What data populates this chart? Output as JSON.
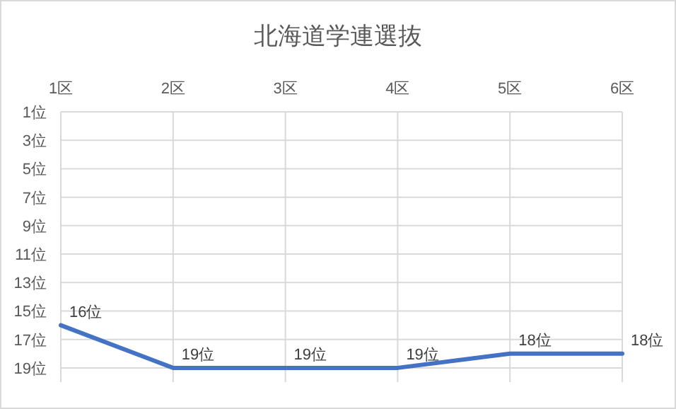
{
  "chart_data": {
    "type": "line",
    "title": "北海道学連選抜",
    "categories": [
      "1区",
      "2区",
      "3区",
      "4区",
      "5区",
      "6区"
    ],
    "series": [
      {
        "color": "#4472c4",
        "values": [
          16,
          19,
          19,
          19,
          18,
          18
        ],
        "value_labels": [
          "16位",
          "19位",
          "19位",
          "19位",
          "18位",
          "18位"
        ]
      }
    ],
    "ylim": [
      20,
      1
    ],
    "yticks": [
      {
        "value": 1,
        "label": "1位"
      },
      {
        "value": 3,
        "label": "3位"
      },
      {
        "value": 5,
        "label": "5位"
      },
      {
        "value": 7,
        "label": "7位"
      },
      {
        "value": 9,
        "label": "9位"
      },
      {
        "value": 11,
        "label": "11位"
      },
      {
        "value": 13,
        "label": "13位"
      },
      {
        "value": 15,
        "label": "15位"
      },
      {
        "value": 17,
        "label": "17位"
      },
      {
        "value": 19,
        "label": "19位"
      }
    ],
    "grid": true,
    "marker": "none",
    "line_style": "solid"
  }
}
